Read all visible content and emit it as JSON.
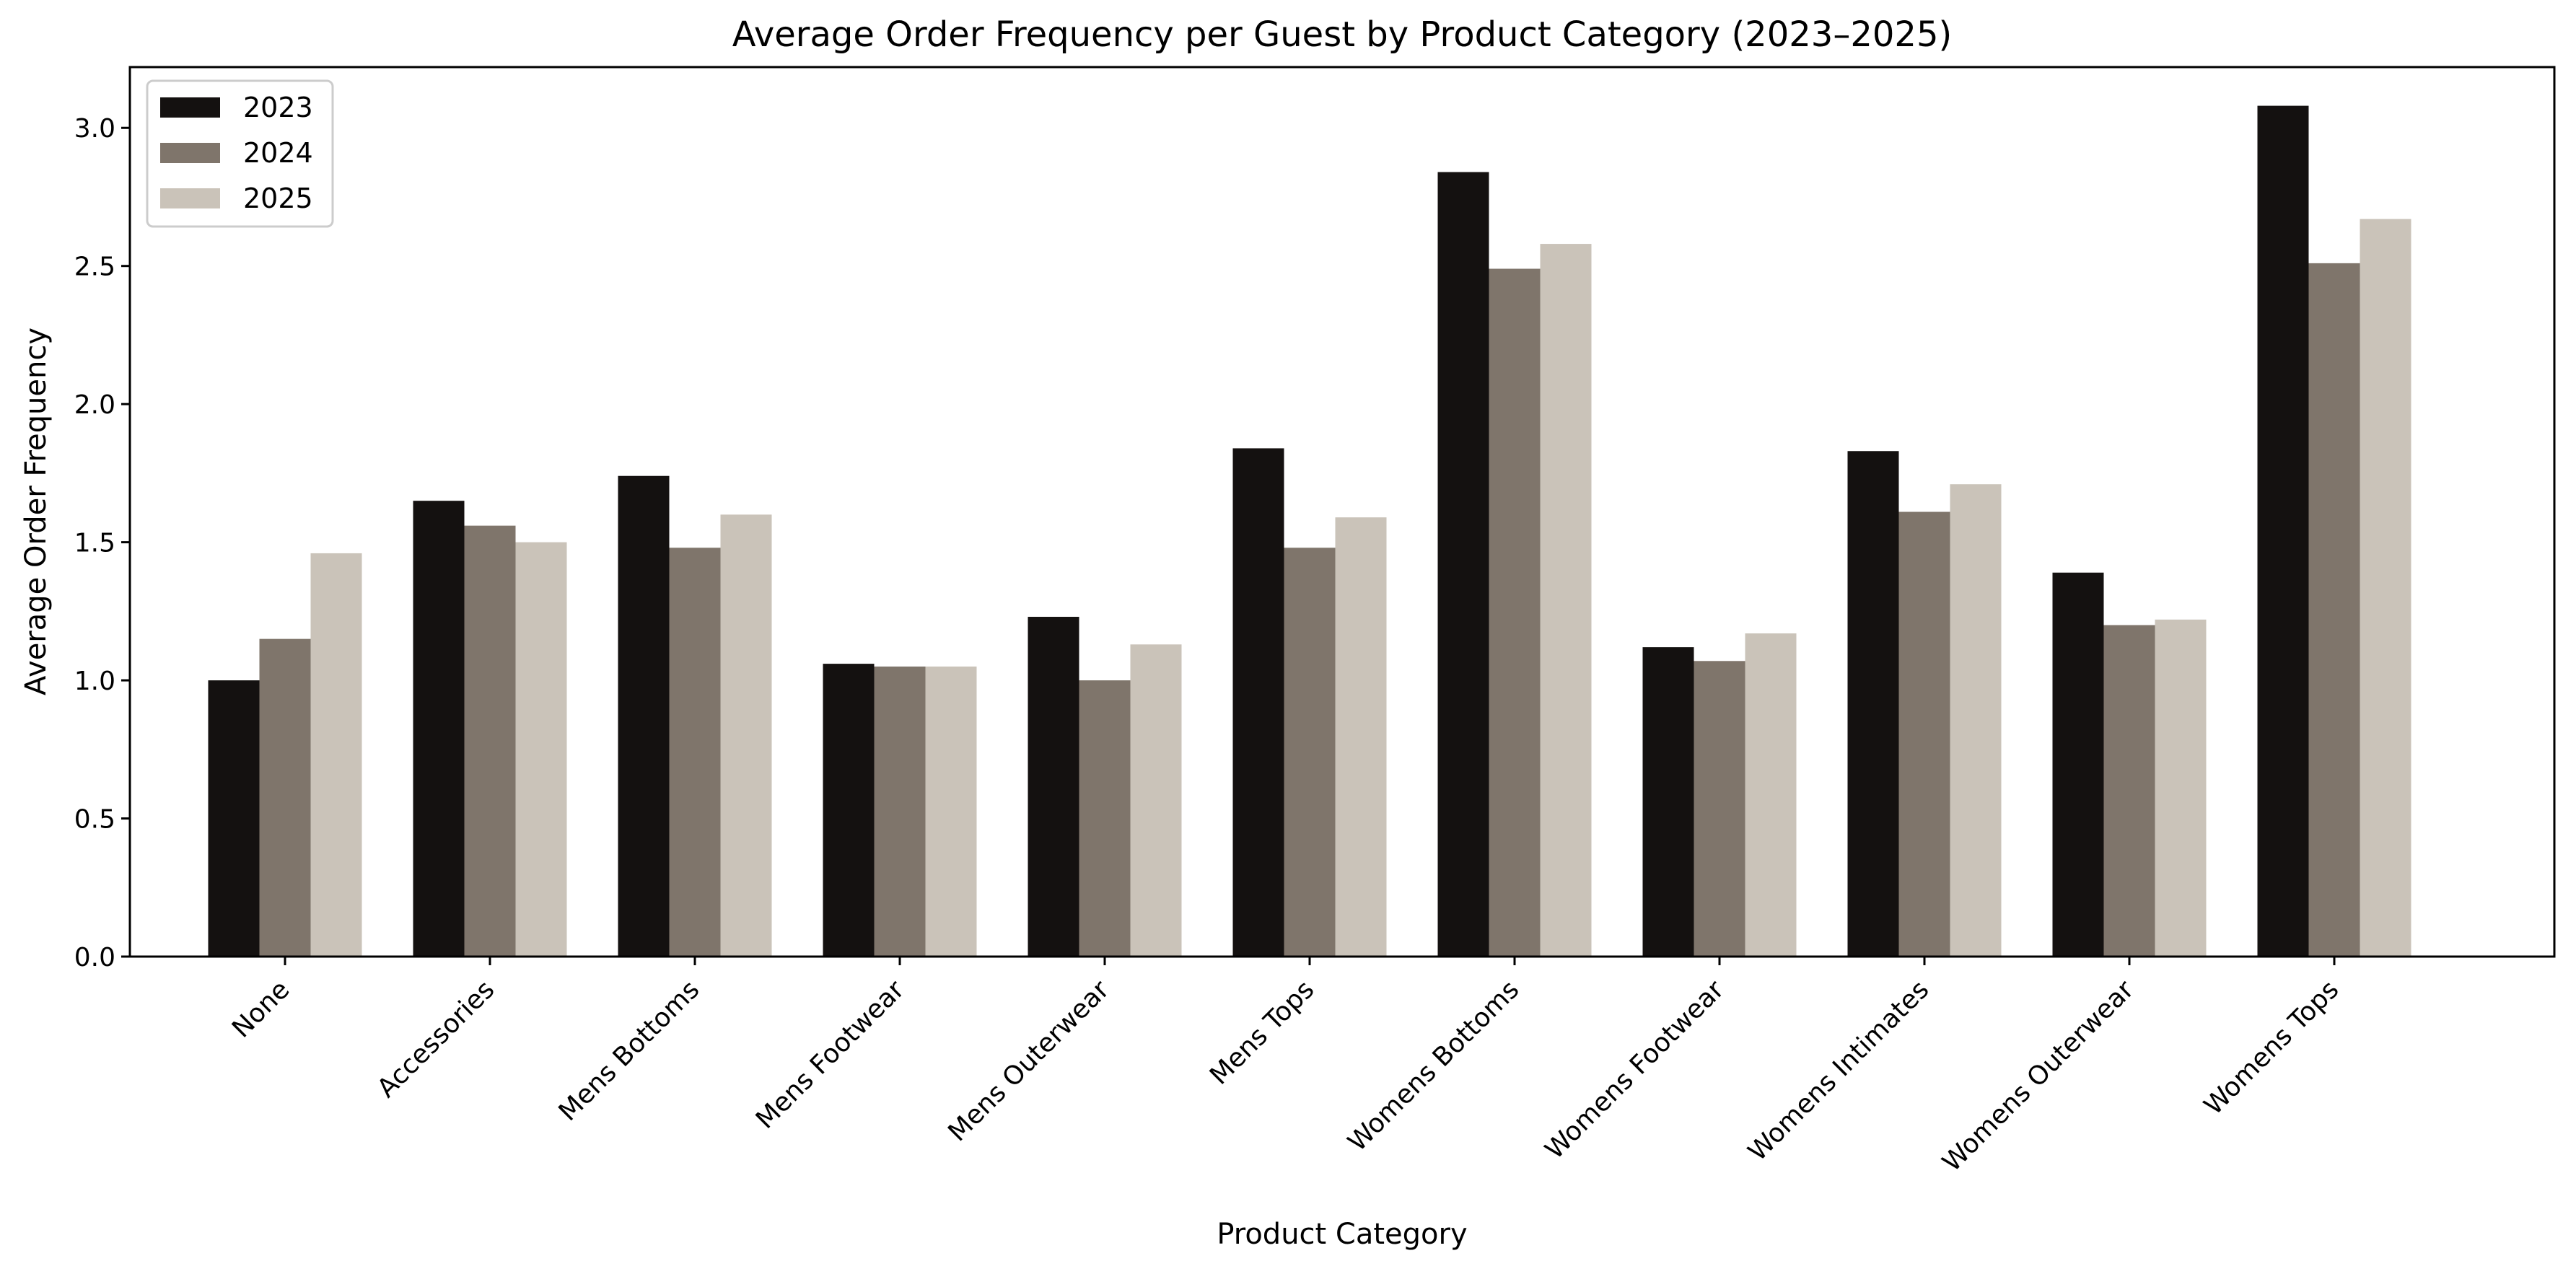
{
  "chart_data": {
    "type": "bar",
    "title": "Average Order Frequency per Guest by Product Category (2023–2025)",
    "xlabel": "Product Category",
    "ylabel": "Average Order Frequency",
    "ylim": [
      0,
      3.22
    ],
    "yticks": [
      "0.0",
      "0.5",
      "1.0",
      "1.5",
      "2.0",
      "2.5",
      "3.0"
    ],
    "grid": false,
    "legend_position": "top-left",
    "categories": [
      "None",
      "Accessories",
      "Mens Bottoms",
      "Mens Footwear",
      "Mens Outerwear",
      "Mens Tops",
      "Womens Bottoms",
      "Womens Footwear",
      "Womens Intimates",
      "Womens Outerwear",
      "Womens Tops"
    ],
    "series": [
      {
        "name": "2023",
        "color": "#141110",
        "values": [
          1.0,
          1.65,
          1.74,
          1.06,
          1.23,
          1.84,
          2.84,
          1.12,
          1.83,
          1.39,
          3.08
        ]
      },
      {
        "name": "2024",
        "color": "#7f756b",
        "values": [
          1.15,
          1.56,
          1.48,
          1.05,
          1.0,
          1.48,
          2.49,
          1.07,
          1.61,
          1.2,
          2.51
        ]
      },
      {
        "name": "2025",
        "color": "#cac3b9",
        "values": [
          1.46,
          1.5,
          1.6,
          1.05,
          1.13,
          1.59,
          2.58,
          1.17,
          1.71,
          1.22,
          2.67
        ]
      }
    ]
  }
}
